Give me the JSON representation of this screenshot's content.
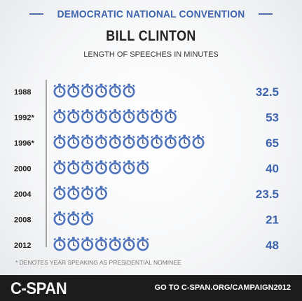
{
  "header": {
    "text": "DEMOCRATIC NATIONAL CONVENTION"
  },
  "title": "BILL CLINTON",
  "subtitle": "LENGTH OF SPEECHES IN MINUTES",
  "footnote": "* DENOTES YEAR SPEAKING AS PRESIDENTIAL NOMINEE",
  "footer": {
    "logo": "C-SPAN",
    "cta": "GO TO C-SPAN.ORG/CAMPAIGN2012"
  },
  "colors": {
    "accent": "#3e64ad",
    "icon_fill": "#4f74bb",
    "footer_bg": "#1c1c1c"
  },
  "icon": "stopwatch-icon",
  "chart_data": {
    "type": "bar",
    "title": "BILL CLINTON",
    "subtitle": "LENGTH OF SPEECHES IN MINUTES",
    "categories": [
      "1988",
      "1992*",
      "1996*",
      "2000",
      "2004",
      "2008",
      "2012"
    ],
    "values": [
      32.5,
      53,
      65,
      40,
      23.5,
      21,
      48
    ],
    "value_labels": [
      "32.5",
      "53",
      "65",
      "40",
      "23.5",
      "21",
      "48"
    ],
    "icons_per_row": [
      6,
      9,
      11,
      7,
      4,
      3,
      7
    ],
    "xlabel": "",
    "ylabel": ""
  }
}
